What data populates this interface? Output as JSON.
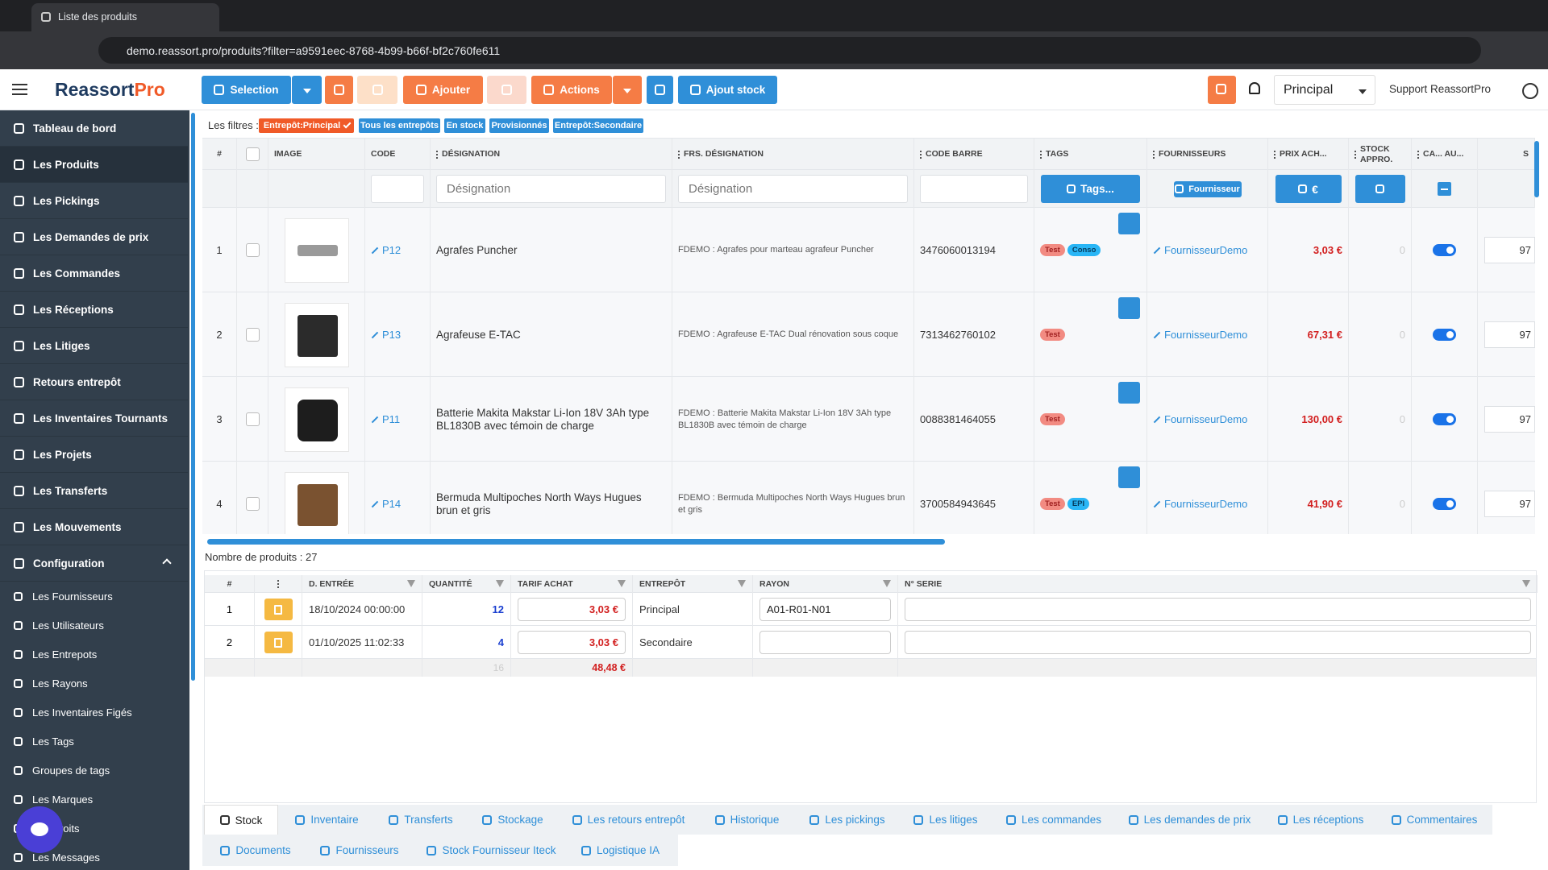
{
  "browser": {
    "tab_title": "Liste des produits",
    "url": "demo.reassort.pro/produits?filter=a9591eec-8768-4b99-b66f-bf2c760fe611"
  },
  "header": {
    "logo": "Reassort",
    "logo_accent": "Pro",
    "buttons": {
      "selection": "Selection",
      "add": "Ajouter",
      "actions": "Actions",
      "add_stock": "Ajout stock"
    },
    "store": "Principal",
    "support": "Support ReassortPro"
  },
  "sidebar": {
    "items": [
      "Tableau de bord",
      "Les Produits",
      "Les Pickings",
      "Les Demandes de prix",
      "Les Commandes",
      "Les Réceptions",
      "Les Litiges",
      "Retours entrepôt",
      "Les Inventaires Tournants",
      "Les Projets",
      "Les Transferts",
      "Les Mouvements"
    ],
    "section": "Configuration",
    "sub_items": [
      "Les Fournisseurs",
      "Les Utilisateurs",
      "Les Entrepots",
      "Les Rayons",
      "Les Inventaires Figés",
      "Les Tags",
      "Groupes de tags",
      "Les Marques",
      "Les Droits",
      "Les Messages"
    ]
  },
  "filters": {
    "label": "Les filtres :",
    "chips": [
      "Entrepôt:Principal",
      "Tous les entrepôts",
      "En stock",
      "Provisionnés",
      "Entrepôt:Secondaire"
    ]
  },
  "table": {
    "headers": [
      "#",
      "IMAGE",
      "CODE",
      "DÉSIGNATION",
      "FRS. DÉSIGNATION",
      "CODE BARRE",
      "TAGS",
      "FOURNISSEURS",
      "PRIX ACH...",
      "STOCK APPRO.",
      "CA... AU...",
      "S"
    ],
    "filter_placeholders": [
      "Désignation",
      "Désignation"
    ],
    "filter_buttons": [
      "Tags...",
      "Fournisseur",
      "€"
    ],
    "rows": [
      {
        "num": 1,
        "code": "P12",
        "designation": "Agrafes Puncher",
        "frs_designation": "FDEMO : Agrafes pour marteau agrafeur Puncher",
        "barcode": "3476060013194",
        "tags": [
          "Test",
          "Conso"
        ],
        "supplier": "FournisseurDemo",
        "price": "3,03 €",
        "stock": "0",
        "qty": "97"
      },
      {
        "num": 2,
        "code": "P13",
        "designation": "Agrafeuse E-TAC",
        "frs_designation": "FDEMO : Agrafeuse E-TAC Dual rénovation sous coque",
        "barcode": "7313462760102",
        "tags": [
          "Test"
        ],
        "supplier": "FournisseurDemo",
        "price": "67,31 €",
        "stock": "0",
        "qty": "97"
      },
      {
        "num": 3,
        "code": "P11",
        "designation": "Batterie Makita Makstar Li-Ion 18V 3Ah type BL1830B avec témoin de charge",
        "frs_designation": "FDEMO : Batterie Makita Makstar Li-Ion 18V 3Ah type BL1830B avec témoin de charge",
        "barcode": "0088381464055",
        "tags": [
          "Test"
        ],
        "supplier": "FournisseurDemo",
        "price": "130,00 €",
        "stock": "0",
        "qty": "97"
      },
      {
        "num": 4,
        "code": "P14",
        "designation": "Bermuda Multipoches North Ways Hugues brun et gris",
        "frs_designation": "FDEMO : Bermuda Multipoches North Ways Hugues brun et gris",
        "barcode": "3700584943645",
        "tags": [
          "Test",
          "EPI"
        ],
        "supplier": "FournisseurDemo",
        "price": "41,90 €",
        "stock": "0",
        "qty": "97"
      }
    ],
    "count": "Nombre de produits : 27"
  },
  "detail": {
    "headers": [
      "#",
      "D. ENTRÉE",
      "QUANTITÉ",
      "TARIF ACHAT",
      "ENTREPÔT",
      "RAYON",
      "N° SERIE"
    ],
    "rows": [
      {
        "num": 1,
        "date": "18/10/2024 00:00:00",
        "qty": "12",
        "price": "3,03 €",
        "warehouse": "Principal",
        "rayon": "A01-R01-N01"
      },
      {
        "num": 2,
        "date": "01/10/2025 11:02:33",
        "qty": "4",
        "price": "3,03 €",
        "warehouse": "Secondaire"
      }
    ],
    "footer": {
      "quantity": "16",
      "total": "48,48 €"
    }
  },
  "tabs": {
    "row1": [
      "Stock",
      "Inventaire",
      "Transferts",
      "Stockage",
      "Les retours entrepôt",
      "Historique",
      "Les pickings",
      "Les litiges",
      "Les commandes",
      "Les demandes de prix",
      "Les réceptions",
      "Commentaires"
    ],
    "row2": [
      "Documents",
      "Fournisseurs",
      "Stock Fournisseur Iteck",
      "Logistique IA"
    ]
  }
}
